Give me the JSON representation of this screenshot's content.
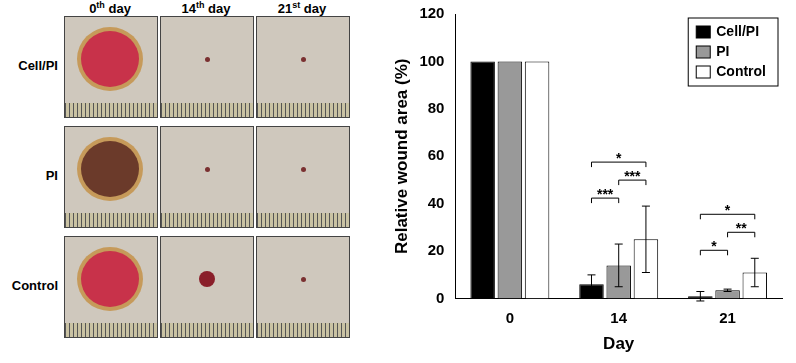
{
  "chart_data": {
    "type": "bar",
    "categories": [
      "0",
      "14",
      "21"
    ],
    "x_label": "Day",
    "y_label": "Relative wound area (%)",
    "ylim": [
      0,
      120
    ],
    "yticks": [
      0,
      20,
      40,
      60,
      80,
      100,
      120
    ],
    "grid": false,
    "legend": "upper right",
    "series": [
      {
        "name": "Cell/PI",
        "color": "#000000",
        "values": [
          100,
          6,
          1
        ],
        "errors": [
          0,
          4,
          2
        ]
      },
      {
        "name": "PI",
        "color": "#999999",
        "values": [
          100,
          14,
          3.5
        ],
        "errors": [
          0,
          9,
          0.5
        ]
      },
      {
        "name": "Control",
        "color": "#ffffff",
        "values": [
          100,
          25,
          11
        ],
        "errors": [
          0,
          14,
          6
        ]
      }
    ],
    "significance": [
      {
        "category": "14",
        "pair": [
          "Cell/PI",
          "PI"
        ],
        "text": "***"
      },
      {
        "category": "14",
        "pair": [
          "PI",
          "Control"
        ],
        "text": "***"
      },
      {
        "category": "14",
        "pair": [
          "Cell/PI",
          "Control"
        ],
        "text": "*"
      },
      {
        "category": "21",
        "pair": [
          "Cell/PI",
          "PI"
        ],
        "text": "*"
      },
      {
        "category": "21",
        "pair": [
          "PI",
          "Control"
        ],
        "text": "**"
      },
      {
        "category": "21",
        "pair": [
          "Cell/PI",
          "Control"
        ],
        "text": "*"
      }
    ]
  },
  "photo_panel": {
    "columns": [
      "0th day",
      "14th day",
      "21st day"
    ],
    "rows": [
      "Cell/PI",
      "PI",
      "Control"
    ]
  }
}
